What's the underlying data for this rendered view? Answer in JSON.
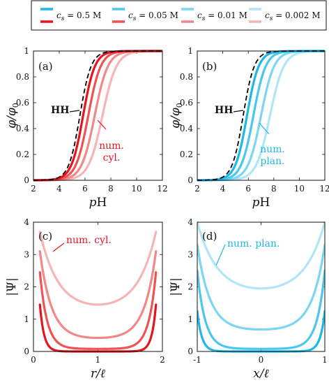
{
  "legend": {
    "items": [
      {
        "cs": "0.5 M",
        "blue": "#1cb8ea",
        "red": "#e8141c"
      },
      {
        "cs": "0.05 M",
        "blue": "#49c7ee",
        "red": "#ee5252"
      },
      {
        "cs": "0.01 M",
        "blue": "#7ad6f3",
        "red": "#f38686"
      },
      {
        "cs": "0.002 M",
        "blue": "#aee6f8",
        "red": "#f8b4b4"
      }
    ],
    "prefix": "c",
    "subscript": "s",
    "equals": " = "
  },
  "chart_data": [
    {
      "id": "a",
      "type": "line",
      "panel_label": "(a)",
      "xlabel_italic": "p",
      "xlabel_rest": "H",
      "ylabel": "φ/φ",
      "ylabel_sub": "0",
      "xlim": [
        2,
        12
      ],
      "ylim": [
        0,
        1
      ],
      "xticks": [
        2,
        4,
        6,
        8,
        10,
        12
      ],
      "yticks": [
        0,
        0.2,
        0.4,
        0.6,
        0.8,
        1
      ],
      "reference": {
        "label": "HH",
        "style": "dashed",
        "color": "#000000",
        "pH_half": 5.6,
        "slope": 1.0
      },
      "annotation": {
        "lines": [
          "num.",
          "cyl."
        ],
        "color": "#e8141c"
      },
      "series": [
        {
          "cs": "0.5 M",
          "color": "#e8141c",
          "pH_half": 5.85,
          "slope": 0.95
        },
        {
          "cs": "0.05 M",
          "color": "#ee5252",
          "pH_half": 6.25,
          "slope": 0.9
        },
        {
          "cs": "0.01 M",
          "color": "#f38686",
          "pH_half": 6.75,
          "slope": 0.85
        },
        {
          "cs": "0.002 M",
          "color": "#f8b4b4",
          "pH_half": 7.35,
          "slope": 0.8
        }
      ]
    },
    {
      "id": "b",
      "type": "line",
      "panel_label": "(b)",
      "xlabel_italic": "p",
      "xlabel_rest": "H",
      "ylabel": "φ/φ",
      "ylabel_sub": "0",
      "xlim": [
        2,
        12
      ],
      "ylim": [
        0,
        1
      ],
      "xticks": [
        2,
        4,
        6,
        8,
        10,
        12
      ],
      "yticks": [
        0,
        0.2,
        0.4,
        0.6,
        0.8,
        1
      ],
      "reference": {
        "label": "HH",
        "style": "dashed",
        "color": "#000000",
        "pH_half": 5.6,
        "slope": 1.0
      },
      "annotation": {
        "lines": [
          "num.",
          "plan."
        ],
        "color": "#1cb8ea"
      },
      "series": [
        {
          "cs": "0.5 M",
          "color": "#1cb8ea",
          "pH_half": 5.9,
          "slope": 0.95
        },
        {
          "cs": "0.05 M",
          "color": "#49c7ee",
          "pH_half": 6.4,
          "slope": 0.9
        },
        {
          "cs": "0.01 M",
          "color": "#7ad6f3",
          "pH_half": 7.0,
          "slope": 0.85
        },
        {
          "cs": "0.002 M",
          "color": "#aee6f8",
          "pH_half": 7.7,
          "slope": 0.8
        }
      ]
    },
    {
      "id": "c",
      "type": "line",
      "panel_label": "(c)",
      "xlabel_italic": "r/ℓ",
      "ylabel": "|Ψ|",
      "xlim": [
        0,
        2
      ],
      "ylim": [
        0,
        4
      ],
      "xticks": [
        0,
        1,
        2
      ],
      "yticks": [
        0,
        1,
        2,
        3,
        4
      ],
      "annotation": {
        "lines": [
          "num. cyl."
        ],
        "color": "#e8141c"
      },
      "geometry": "cylindrical",
      "domain": [
        0.1,
        1.9
      ],
      "series": [
        {
          "cs": "0.5 M",
          "color": "#e8141c",
          "center": 0.0,
          "edge": 1.45
        },
        {
          "cs": "0.05 M",
          "color": "#ee5252",
          "center": 0.08,
          "edge": 2.45
        },
        {
          "cs": "0.01 M",
          "color": "#f38686",
          "center": 0.42,
          "edge": 3.1
        },
        {
          "cs": "0.002 M",
          "color": "#f8b4b4",
          "center": 1.45,
          "edge": 3.7
        }
      ]
    },
    {
      "id": "d",
      "type": "line",
      "panel_label": "(d)",
      "xlabel_italic": "x/ℓ",
      "ylabel": "|Ψ|",
      "xlim": [
        -1,
        1
      ],
      "ylim": [
        0,
        4
      ],
      "xticks": [
        -1,
        0,
        1
      ],
      "yticks": [
        0,
        1,
        2,
        3,
        4
      ],
      "annotation": {
        "lines": [
          "num. plan."
        ],
        "color": "#1cb8ea"
      },
      "geometry": "planar",
      "domain": [
        -1,
        1
      ],
      "series": [
        {
          "cs": "0.5 M",
          "color": "#1cb8ea",
          "center": 0.0,
          "edge": 1.25
        },
        {
          "cs": "0.05 M",
          "color": "#49c7ee",
          "center": 0.08,
          "edge": 2.5
        },
        {
          "cs": "0.01 M",
          "color": "#7ad6f3",
          "center": 0.68,
          "edge": 3.3
        },
        {
          "cs": "0.002 M",
          "color": "#aee6f8",
          "center": 1.95,
          "edge": 4.0
        }
      ]
    }
  ]
}
